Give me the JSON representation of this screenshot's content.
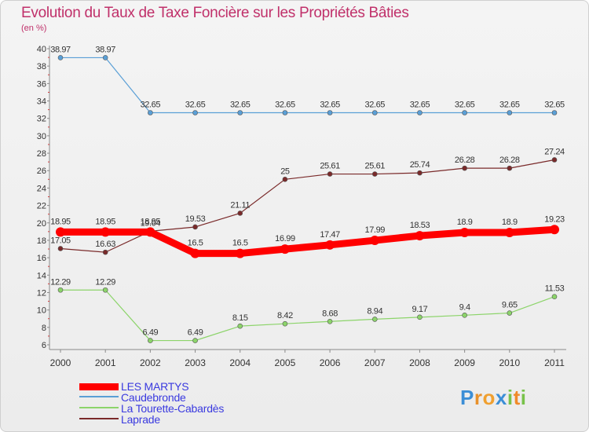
{
  "title": "Evolution du Taux de Taxe Foncière sur les Propriétés Bâties",
  "subtitle": "(en %)",
  "logo": {
    "letters": [
      "P",
      "r",
      "o",
      "x",
      "i",
      "t",
      "i"
    ],
    "colors": [
      "#3b8ed6",
      "#e8912b",
      "#f0a030",
      "#3b8ed6",
      "#78c24a",
      "#f08a2a",
      "#78c24a"
    ]
  },
  "chart_data": {
    "type": "line",
    "title": "Evolution du Taux de Taxe Foncière sur les Propriétés Bâties",
    "ylabel": "(en %)",
    "xlabel": "",
    "ylim": [
      6,
      40
    ],
    "yticks": [
      6,
      8,
      10,
      12,
      14,
      16,
      18,
      20,
      22,
      24,
      26,
      28,
      30,
      32,
      34,
      36,
      38,
      40
    ],
    "categories": [
      "2000",
      "2001",
      "2002",
      "2003",
      "2004",
      "2005",
      "2006",
      "2007",
      "2008",
      "2009",
      "2010",
      "2011"
    ],
    "series": [
      {
        "name": "Caudebronde",
        "color": "#5a9fd6",
        "values": [
          38.97,
          38.97,
          32.65,
          32.65,
          32.65,
          32.65,
          32.65,
          32.65,
          32.65,
          32.65,
          32.65,
          32.65
        ],
        "labels": [
          "38.97",
          "38.97",
          "32.65",
          "32.65",
          "32.65",
          "32.65",
          "32.65",
          "32.65",
          "32.65",
          "32.65",
          "32.65",
          "32.65"
        ]
      },
      {
        "name": "Laprade",
        "color": "#7a2a2a",
        "values": [
          17.05,
          16.63,
          19.04,
          19.53,
          21.11,
          25,
          25.61,
          25.61,
          25.74,
          26.28,
          26.28,
          27.24
        ],
        "labels": [
          "17.05",
          "16.63",
          "19.04",
          "19.53",
          "21.11",
          "25",
          "25.61",
          "25.61",
          "25.74",
          "26.28",
          "26.28",
          "27.24"
        ]
      },
      {
        "name": "La Tourette-Cabardès",
        "color": "#8cd46a",
        "values": [
          12.29,
          12.29,
          6.49,
          6.49,
          8.15,
          8.42,
          8.68,
          8.94,
          9.17,
          9.4,
          9.65,
          11.53
        ],
        "labels": [
          "12.29",
          "12.29",
          "6.49",
          "6.49",
          "8.15",
          "8.42",
          "8.68",
          "8.94",
          "9.17",
          "9.4",
          "9.65",
          "11.53"
        ]
      },
      {
        "name": "LES MARTYS",
        "color": "#ff0000",
        "values": [
          18.95,
          18.95,
          18.95,
          16.5,
          16.5,
          16.99,
          17.47,
          17.99,
          18.53,
          18.9,
          18.9,
          19.23
        ],
        "labels": [
          "18.95",
          "18.95",
          "18.95",
          "16.5",
          "16.5",
          "16.99",
          "17.47",
          "17.99",
          "18.53",
          "18.9",
          "18.9",
          "19.23"
        ]
      }
    ],
    "legend": [
      "LES MARTYS",
      "Caudebronde",
      "La Tourette-Cabardès",
      "Laprade"
    ],
    "legend_position": "bottom-left",
    "grid": false
  }
}
